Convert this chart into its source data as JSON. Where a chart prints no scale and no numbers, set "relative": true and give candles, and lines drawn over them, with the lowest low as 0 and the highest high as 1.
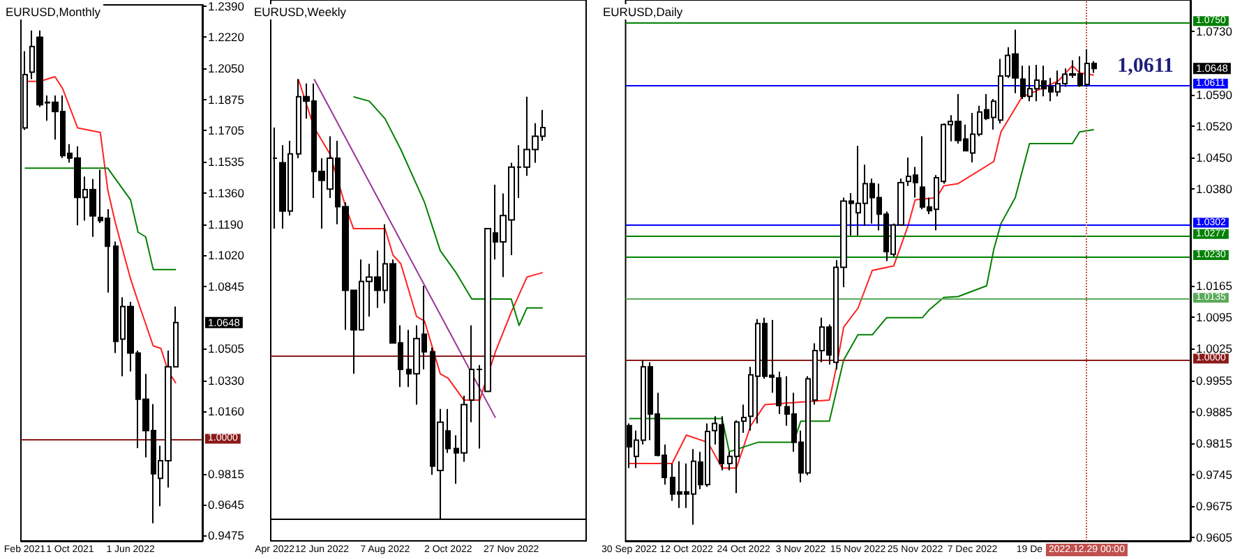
{
  "chart_data": [
    {
      "type": "candlestick",
      "title": "EURUSD,Monthly",
      "categories": [
        "Feb 2021",
        null,
        null,
        null,
        null,
        null,
        "1 Oct 2021",
        null,
        null,
        null,
        null,
        null,
        null,
        null,
        "1 Jun 2022",
        null,
        null,
        null,
        null,
        null,
        null,
        null,
        null,
        null
      ],
      "ohlc": [
        [
          1.172,
          1.2142,
          1.1708,
          1.2014
        ],
        [
          1.2027,
          1.2257,
          1.1989,
          1.2168
        ],
        [
          1.2219,
          1.2257,
          1.1835,
          1.1848
        ],
        [
          1.1861,
          1.1899,
          1.1759,
          1.1858
        ],
        [
          1.1861,
          1.1899,
          1.1656,
          1.181
        ],
        [
          1.181,
          1.1899,
          1.1554,
          1.1567
        ],
        [
          1.158,
          1.1631,
          1.1529,
          1.1554
        ],
        [
          1.1554,
          1.1618,
          1.1183,
          1.1337
        ],
        [
          1.1337,
          1.1452,
          1.1209,
          1.138
        ],
        [
          1.138,
          1.1439,
          1.112,
          1.1235
        ],
        [
          1.1227,
          1.149,
          1.1196,
          1.1209
        ],
        [
          1.1222,
          1.1273,
          1.0813,
          1.1068
        ],
        [
          1.1068,
          1.1094,
          1.048,
          1.0544
        ],
        [
          1.0557,
          1.0787,
          1.0352,
          1.0736
        ],
        [
          1.0736,
          1.0762,
          1.0378,
          1.048
        ],
        [
          1.048,
          1.0493,
          0.9956,
          1.0225
        ],
        [
          1.0225,
          1.0365,
          0.9905,
          1.0053
        ],
        [
          1.0053,
          1.0199,
          0.9542,
          0.9815
        ],
        [
          0.979,
          0.9969,
          0.9636,
          0.9887
        ],
        [
          0.9887,
          1.0493,
          0.9739,
          1.0404
        ],
        [
          1.0404,
          1.0736,
          1.0404,
          1.0648
        ],
        null,
        null,
        null
      ],
      "series": [
        {
          "type": "line",
          "color": "#ff2020",
          "values": [
            1.1976,
            null,
            1.1976,
            null,
            1.2002,
            1.1938,
            null,
            1.172,
            null,
            null,
            1.1695,
            1.1375,
            1.1196,
            null,
            1.0889,
            1.0762,
            null,
            1.0519,
            1.0506,
            1.0378,
            1.0314,
            null,
            null,
            null
          ]
        },
        {
          "type": "line",
          "color": "#008000",
          "values": [
            1.1498,
            null,
            null,
            null,
            null,
            null,
            null,
            null,
            null,
            null,
            null,
            1.1498,
            1.1439,
            null,
            1.1324,
            1.1145,
            1.112,
            1.094,
            null,
            null,
            1.094,
            null,
            null,
            null
          ]
        }
      ],
      "ylim": [
        0.9445,
        1.2398
      ],
      "yticks": [
        0.9475,
        0.9645,
        0.9815,
        {
          "value": 1.016,
          "label": "1.0160"
        },
        {
          "value": 1.033,
          "label": "1.0330"
        },
        1.0505,
        1.0845,
        {
          "value": 1.102,
          "label": "1.1020"
        },
        {
          "value": 1.119,
          "label": "1.1190"
        },
        {
          "value": 1.136,
          "label": "1.1360"
        },
        1.1535,
        1.1705,
        1.1875,
        {
          "value": 1.205,
          "label": "1.2050"
        },
        {
          "value": 1.222,
          "label": "1.2220"
        },
        {
          "value": 1.239,
          "label": "1.2390"
        }
      ],
      "ref_lines": [
        {
          "axis": "y",
          "value": 1.0,
          "label": "1.0000",
          "color": "#8b1a1a"
        }
      ],
      "annotations": [
        "1.0648"
      ],
      "tick_labels": true
    },
    {
      "type": "candlestick",
      "title": "EURUSD,Weekly",
      "relative": true,
      "categories": [
        "Apr 2022",
        null,
        null,
        null,
        null,
        null,
        "12 Jun 2022",
        null,
        null,
        null,
        null,
        null,
        null,
        null,
        "7 Aug 2022",
        null,
        null,
        null,
        null,
        null,
        null,
        null,
        "2 Oct 2022",
        null,
        null,
        null,
        null,
        null,
        null,
        null,
        "27 Nov 2022",
        null,
        null,
        null,
        null,
        null,
        null,
        null,
        null,
        null
      ],
      "ohlc": [
        [
          0.82,
          0.89,
          0.66,
          0.82
        ],
        [
          0.81,
          0.85,
          0.66,
          0.7
        ],
        [
          0.7,
          0.86,
          0.69,
          0.83
        ],
        [
          0.83,
          1,
          0.82,
          0.96
        ],
        [
          0.96,
          0.99,
          0.91,
          0.95
        ],
        [
          0.95,
          0.99,
          0.73,
          0.79
        ],
        [
          0.79,
          0.82,
          0.66,
          0.77
        ],
        [
          0.75,
          0.87,
          0.73,
          0.82
        ],
        [
          0.82,
          0.86,
          0.67,
          0.71
        ],
        [
          0.71,
          0.72,
          0.43,
          0.52
        ],
        [
          0.52,
          0.52,
          0.33,
          0.43
        ],
        [
          0.43,
          0.59,
          0.43,
          0.54
        ],
        [
          0.54,
          0.58,
          0.46,
          0.55
        ],
        [
          0.55,
          0.61,
          0.48,
          0.52
        ],
        [
          0.52,
          0.67,
          0.49,
          0.58
        ],
        [
          0.58,
          0.59,
          0.4,
          0.4
        ],
        [
          0.4,
          0.44,
          0.3,
          0.34
        ],
        [
          0.34,
          0.43,
          0.3,
          0.33
        ],
        [
          0.33,
          0.44,
          0.26,
          0.41
        ],
        [
          0.42,
          0.53,
          0.34,
          0.38
        ],
        [
          0.38,
          0.39,
          0.1,
          0.12
        ],
        [
          0.11,
          0.25,
          0,
          0.22
        ],
        [
          0.2,
          0.25,
          0.15,
          0.16
        ],
        [
          0.16,
          0.19,
          0.08,
          0.15
        ],
        [
          0.15,
          0.28,
          0.13,
          0.26
        ],
        [
          0.27,
          0.44,
          0.22,
          0.34
        ],
        [
          0.34,
          0.35,
          0.16,
          0.34
        ],
        [
          0.29,
          0.66,
          0.29,
          0.66
        ],
        [
          0.65,
          0.76,
          0.59,
          0.63
        ],
        [
          0.63,
          0.74,
          0.55,
          0.69
        ],
        [
          0.68,
          0.81,
          0.6,
          0.8
        ],
        [
          0.8,
          0.85,
          0.73,
          0.8
        ],
        [
          0.8,
          0.96,
          0.78,
          0.84
        ],
        [
          0.84,
          0.9,
          0.81,
          0.87
        ],
        [
          0.87,
          0.93,
          0.86,
          0.89
        ],
        null,
        null,
        null,
        null,
        null
      ],
      "series": [
        {
          "type": "line",
          "color": "#ff2020",
          "values": [
            null,
            null,
            null,
            1,
            null,
            0.89,
            null,
            0.83,
            null,
            0.71,
            0.66,
            null,
            null,
            null,
            0.66,
            0.6,
            0.58,
            null,
            0.46,
            0.45,
            null,
            0.33,
            0.32,
            null,
            0.27,
            null,
            0.27,
            null,
            0.38,
            null,
            0.47,
            0.51,
            0.55,
            null,
            0.56,
            null,
            null,
            null,
            null,
            null
          ]
        },
        {
          "type": "line",
          "color": "#008000",
          "values": [
            null,
            null,
            null,
            null,
            null,
            null,
            null,
            null,
            null,
            null,
            0.96,
            null,
            0.95,
            null,
            0.91,
            null,
            0.84,
            null,
            null,
            0.72,
            null,
            0.61,
            null,
            0.56,
            null,
            0.5,
            null,
            null,
            null,
            null,
            0.5,
            0.44,
            0.48,
            null,
            0.48,
            null,
            null,
            null,
            null,
            null
          ]
        },
        {
          "type": "line",
          "color": "#993399",
          "values": [
            null,
            null,
            null,
            null,
            null,
            1,
            null,
            null,
            null,
            null,
            null,
            null,
            null,
            null,
            null,
            null,
            null,
            null,
            null,
            null,
            null,
            null,
            null,
            null,
            null,
            null,
            null,
            null,
            0.23,
            null,
            null,
            null,
            null,
            null,
            null,
            null,
            null,
            null,
            null,
            null
          ]
        }
      ],
      "ref_lines": [
        {
          "axis": "y",
          "value": 0.37,
          "color": "#8b1a1a"
        }
      ],
      "tick_labels": "x"
    },
    {
      "type": "candlestick",
      "title": "EURUSD,Daily",
      "categories": [
        "30 Sep 2022",
        null,
        null,
        null,
        null,
        null,
        null,
        null,
        "12 Oct 2022",
        null,
        null,
        null,
        null,
        null,
        null,
        null,
        "24 Oct 2022",
        null,
        null,
        null,
        null,
        null,
        null,
        null,
        "3 Nov 2022",
        null,
        null,
        null,
        null,
        null,
        null,
        null,
        "15 Nov 2022",
        null,
        null,
        null,
        null,
        null,
        null,
        null,
        "25 Nov 2022",
        null,
        null,
        null,
        null,
        null,
        null,
        null,
        "7 Dec 2022",
        null,
        null,
        null,
        null,
        null,
        null,
        null,
        "19 De",
        null,
        null,
        null,
        null,
        null,
        null,
        null,
        "2022.12.29 00:00",
        null,
        null,
        null,
        null,
        null,
        null,
        null,
        null,
        null,
        null,
        null,
        null,
        null,
        null
      ],
      "ohlc": [
        [
          0.9854,
          0.9859,
          0.976,
          0.9807
        ],
        [
          0.9786,
          0.9843,
          0.976,
          0.9822
        ],
        [
          0.9822,
          1.0,
          0.9812,
          0.9985
        ],
        [
          0.9985,
          0.9995,
          0.9822,
          0.988
        ],
        [
          0.988,
          0.9927,
          0.9786,
          0.9788
        ],
        [
          0.9788,
          0.9812,
          0.9723,
          0.9739
        ],
        [
          0.9739,
          0.977,
          0.9687,
          0.9702
        ],
        [
          0.9707,
          0.9775,
          0.9671,
          0.9702
        ],
        [
          0.9707,
          0.977,
          0.9671,
          0.9702
        ],
        [
          0.9702,
          0.9802,
          0.9634,
          0.9775
        ],
        [
          0.9773,
          0.9796,
          0.9713,
          0.9723
        ],
        [
          0.9723,
          0.9859,
          0.9718,
          0.9841
        ],
        [
          0.9843,
          0.9875,
          0.9812,
          0.9859
        ],
        [
          0.9856,
          0.9875,
          0.9755,
          0.977
        ],
        [
          0.977,
          0.9796,
          0.9755,
          0.9786
        ],
        [
          0.9786,
          0.9866,
          0.9704,
          0.9862
        ],
        [
          0.9864,
          0.9901,
          0.9838,
          0.9872
        ],
        [
          0.9875,
          0.9985,
          0.9843,
          0.9967
        ],
        [
          0.9964,
          1.0091,
          0.9859,
          1.0081
        ],
        [
          1.0081,
          1.0094,
          0.9958,
          0.9964
        ],
        [
          0.9966,
          1.0089,
          0.9927,
          0.9962
        ],
        [
          0.996,
          0.9974,
          0.988,
          0.9899
        ],
        [
          0.9896,
          0.9964,
          0.9854,
          0.988
        ],
        [
          0.988,
          0.9927,
          0.9796,
          0.9817
        ],
        [
          0.9817,
          0.9843,
          0.9728,
          0.9749
        ],
        [
          0.9749,
          0.9964,
          0.9744,
          0.9958
        ],
        [
          0.9911,
          1.0037,
          0.9901,
          1.0021
        ],
        [
          1.0021,
          1.0094,
          0.9995,
          1.0073
        ],
        [
          1.0073,
          1.0079,
          0.999,
          1.0011
        ],
        [
          0.9995,
          1.0222,
          0.9979,
          1.0206
        ],
        [
          1.0206,
          1.0361,
          1.0162,
          1.0353
        ],
        [
          1.0353,
          1.0371,
          1.0277,
          1.0348
        ],
        [
          1.0327,
          1.0476,
          1.0277,
          1.0348
        ],
        [
          1.0348,
          1.0434,
          1.0298,
          1.0392
        ],
        [
          1.0392,
          1.0403,
          1.0303,
          1.0361
        ],
        [
          1.0361,
          1.0392,
          1.0288,
          1.0324
        ],
        [
          1.0324,
          1.033,
          1.022,
          1.0241
        ],
        [
          1.0235,
          1.0303,
          1.023,
          1.03
        ],
        [
          1.03,
          1.0403,
          1.0298,
          1.0394
        ],
        [
          1.0397,
          1.045,
          1.0387,
          1.0408
        ],
        [
          1.0411,
          1.0429,
          1.0361,
          1.0394
        ],
        [
          1.0384,
          1.0497,
          1.0335,
          1.034
        ],
        [
          1.034,
          1.0361,
          1.0324,
          1.0332
        ],
        [
          1.0335,
          1.0411,
          1.0288,
          1.0405
        ],
        [
          1.0397,
          1.0526,
          1.0392,
          1.0523
        ],
        [
          1.0523,
          1.0544,
          1.0486,
          1.053
        ],
        [
          1.053,
          1.0591,
          1.0481,
          1.0488
        ],
        [
          1.0491,
          1.0523,
          1.0465,
          1.0465
        ],
        [
          1.046,
          1.0549,
          1.0439,
          1.0502
        ],
        [
          1.0502,
          1.0565,
          1.0497,
          1.0551
        ],
        [
          1.0556,
          1.0591,
          1.0533,
          1.0537
        ],
        [
          1.0539,
          1.058,
          1.0512,
          1.0575
        ],
        [
          1.0533,
          1.0669,
          1.0526,
          1.0631
        ],
        [
          1.0631,
          1.0695,
          1.0627,
          1.0677
        ],
        [
          1.068,
          1.0734,
          1.0593,
          1.0627
        ],
        [
          1.0624,
          1.0654,
          1.058,
          1.0586
        ],
        [
          1.0586,
          1.0654,
          1.0575,
          1.0603
        ],
        [
          1.0603,
          1.0656,
          1.0575,
          1.0622
        ],
        [
          1.062,
          1.0654,
          1.0586,
          1.0603
        ],
        [
          1.0607,
          1.0627,
          1.0575,
          1.0596
        ],
        [
          1.0596,
          1.0643,
          1.0586,
          1.0614
        ],
        [
          1.0614,
          1.0648,
          1.0607,
          1.0635
        ],
        [
          1.0633,
          1.0666,
          1.0627,
          1.0636
        ],
        [
          1.0636,
          1.0675,
          1.0607,
          1.061
        ],
        [
          1.0612,
          1.069,
          1.0607,
          1.0659
        ],
        [
          1.0659,
          1.0664,
          1.0638,
          1.0648
        ],
        null,
        null,
        null,
        null,
        null,
        null,
        null,
        null,
        null,
        null,
        null,
        null,
        null
      ],
      "series": [
        {
          "type": "line",
          "color": "#ff2020",
          "values": [
            0.977,
            null,
            null,
            null,
            null,
            null,
            0.977,
            null,
            0.9833,
            null,
            null,
            0.9817,
            null,
            0.976,
            null,
            0.976,
            null,
            0.9854,
            null,
            0.9901,
            null,
            null,
            null,
            null,
            null,
            null,
            null,
            null,
            0.9911,
            0.9985,
            1.0073,
            null,
            1.0115,
            null,
            1.0199,
            null,
            null,
            1.0209,
            null,
            1.0298,
            1.0356,
            null,
            null,
            1.0361,
            1.0387,
            null,
            1.0392,
            null,
            null,
            null,
            null,
            1.0441,
            1.0507,
            null,
            null,
            1.0586,
            1.0591,
            null,
            null,
            null,
            1.062,
            null,
            1.0654,
            1.0638,
            null,
            1.0633,
            null,
            null,
            null,
            null,
            null,
            null,
            null,
            null,
            null,
            null,
            null,
            null,
            null
          ]
        },
        {
          "type": "line",
          "color": "#008000",
          "values": [
            0.987,
            null,
            null,
            null,
            null,
            null,
            null,
            null,
            null,
            null,
            null,
            null,
            null,
            0.987,
            0.9796,
            null,
            null,
            null,
            0.9817,
            null,
            null,
            null,
            null,
            0.9817,
            0.9864,
            null,
            null,
            null,
            0.9864,
            null,
            1.0,
            null,
            1.0056,
            null,
            1.0056,
            null,
            1.0094,
            null,
            null,
            null,
            null,
            1.0094,
            1.0112,
            null,
            1.0139,
            null,
            1.0141,
            null,
            null,
            null,
            1.0165,
            1.0246,
            1.0303,
            null,
            1.0361,
            null,
            1.0481,
            null,
            null,
            null,
            null,
            null,
            1.0481,
            1.0507,
            null,
            1.0512,
            null,
            null,
            null,
            null,
            null,
            null,
            null,
            null,
            null,
            null,
            null,
            null,
            null
          ]
        }
      ],
      "ylim": [
        0.9598,
        1.08
      ],
      "yticks": [
        0.9605,
        0.9675,
        0.9745,
        0.9815,
        0.9885,
        0.9955,
        1.0025,
        1.0095,
        1.0165,
        {
          "value": 1.038,
          "label": "1.0380"
        },
        {
          "value": 1.045,
          "label": "1.0450"
        },
        {
          "value": 1.052,
          "label": "1.0520"
        },
        {
          "value": 1.059,
          "label": "1.0590"
        },
        {
          "value": 1.073,
          "label": "1.0730"
        }
      ],
      "ref_lines": [
        {
          "axis": "y",
          "value": 1.075,
          "label": "1.0750",
          "color": "#008000"
        },
        {
          "axis": "y",
          "value": 1.0611,
          "label": "1.0611",
          "color": "#0000ff"
        },
        {
          "axis": "y",
          "value": 1.0302,
          "label": "1.0302",
          "color": "#0000ff"
        },
        {
          "axis": "y",
          "value": 1.0277,
          "label": "1.0277",
          "color": "#008000"
        },
        {
          "axis": "y",
          "value": 1.023,
          "label": "1.0230",
          "color": "#008000"
        },
        {
          "axis": "y",
          "value": 1.0135,
          "label": "1.0135",
          "color": "#5aaa5a"
        },
        {
          "axis": "y",
          "value": 1.0,
          "label": "1.0000",
          "color": "#8b1a1a"
        },
        {
          "axis": "x",
          "value": "2022.12.29 00:00",
          "color": "#c0504d",
          "line_style": "dotted"
        }
      ],
      "annotations": [
        "1.0648",
        "1,0611"
      ],
      "tick_labels": true
    }
  ]
}
